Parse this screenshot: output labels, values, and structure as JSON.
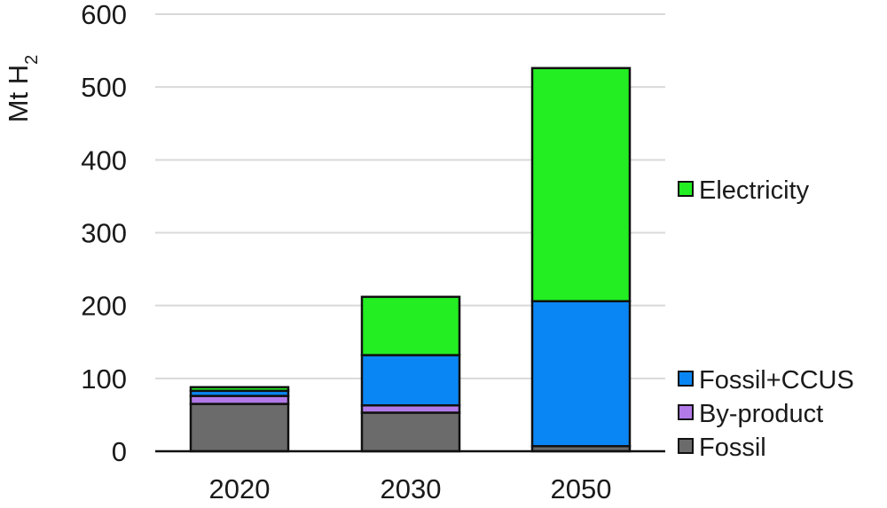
{
  "chart_data": {
    "type": "bar",
    "stacked": true,
    "title": "",
    "xlabel": "",
    "ylabel": "Mt H",
    "ylabel_subscript": "2",
    "ylim": [
      0,
      600
    ],
    "yticks": [
      "0",
      "100",
      "200",
      "300",
      "400",
      "500",
      "600"
    ],
    "categories": [
      "2020",
      "2030",
      "2050"
    ],
    "grid": "horizontal",
    "legend_position": "right",
    "series": [
      {
        "name": "Fossil",
        "color": "#6b6b6b",
        "values": [
          65,
          53,
          7
        ]
      },
      {
        "name": "By-product",
        "color": "#b27ae8",
        "values": [
          11,
          10,
          0
        ]
      },
      {
        "name": "Fossil+CCUS",
        "color": "#0a86f4",
        "values": [
          7,
          69,
          199
        ]
      },
      {
        "name": "Electricity",
        "color": "#22ee22",
        "values": [
          5,
          80,
          320
        ]
      }
    ]
  }
}
